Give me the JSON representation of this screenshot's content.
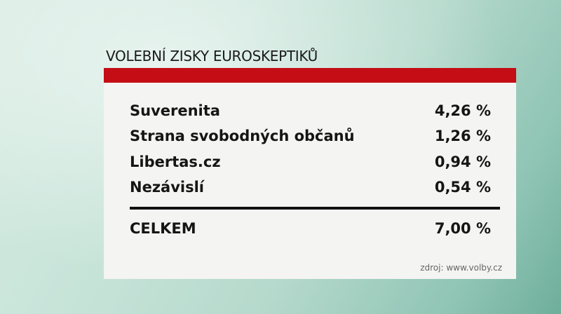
{
  "title": "VOLEBNÍ ZISKY EUROSKEPTIKŮ",
  "colors": {
    "header_bar": "#c40d14",
    "panel": "#f4f4f3",
    "text": "#151515"
  },
  "chart_data": {
    "type": "table",
    "title": "VOLEBNÍ ZISKY EUROSKEPTIKŮ",
    "rows": [
      {
        "label": "Suverenita",
        "value": "4,26 %"
      },
      {
        "label": "Strana svobodných občanů",
        "value": "1,26 %"
      },
      {
        "label": "Libertas.cz",
        "value": "0,94 %"
      },
      {
        "label": "Nezávislí",
        "value": "0,54 %"
      }
    ],
    "total": {
      "label": "CELKEM",
      "value": "7,00 %"
    },
    "source": "zdroj: www.volby.cz"
  }
}
